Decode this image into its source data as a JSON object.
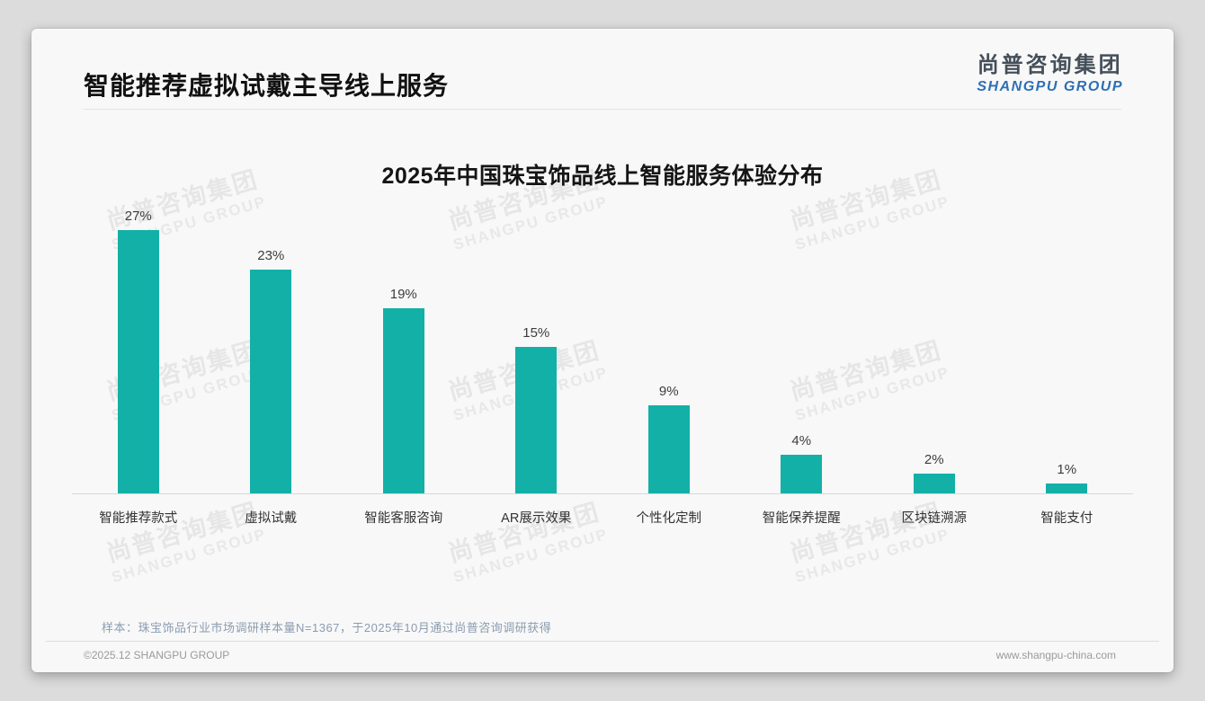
{
  "page": {
    "header": {
      "title": "智能推荐虚拟试戴主导线上服务"
    },
    "logo": {
      "cn": "尚普咨询集团",
      "en": "SHANGPU GROUP"
    },
    "watermark": {
      "cn": "尚普咨询集团",
      "en": "SHANGPU GROUP"
    },
    "footnote": "样本：珠宝饰品行业市场调研样本量N=1367，于2025年10月通过尚普咨询调研获得",
    "footer": {
      "left": "©2025.12 SHANGPU GROUP",
      "right": "www.shangpu-china.com"
    }
  },
  "chart_data": {
    "type": "bar",
    "title": "2025年中国珠宝饰品线上智能服务体验分布",
    "categories": [
      "智能推荐款式",
      "虚拟试戴",
      "智能客服咨询",
      "AR展示效果",
      "个性化定制",
      "智能保养提醒",
      "区块链溯源",
      "智能支付"
    ],
    "values": [
      27,
      23,
      19,
      15,
      9,
      4,
      2,
      1
    ],
    "unit": "%",
    "data_labels": true,
    "grid": false,
    "ylim": [
      0,
      30
    ],
    "bar_color": "#12b0a7",
    "label_color": "#3d3d3d",
    "xlabel": "",
    "ylabel": ""
  },
  "colors": {
    "accent_teal": "#12b0a7",
    "logo_blue": "#2e6fb4",
    "footnote_blue_gray": "#8b9cb0",
    "title_black": "#111111"
  }
}
